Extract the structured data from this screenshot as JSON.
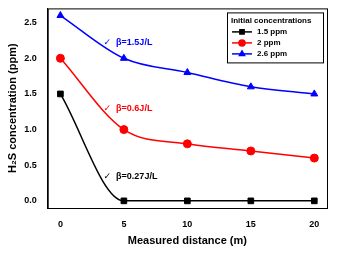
{
  "chart_data": {
    "type": "line",
    "x_label": "Measured distance (m)",
    "y_label": "H₂S concentration (ppm)",
    "x": [
      0,
      5,
      10,
      15,
      20
    ],
    "series": [
      {
        "name": "1.5 ppm",
        "color": "#000000",
        "marker": "square",
        "values": [
          1.5,
          0,
          0,
          0,
          0
        ]
      },
      {
        "name": "2 ppm",
        "color": "#ff0000",
        "marker": "circle",
        "values": [
          2.0,
          1.0,
          0.8,
          0.7,
          0.6
        ]
      },
      {
        "name": "2.6 ppm",
        "color": "#0000ff",
        "marker": "triangle",
        "values": [
          2.6,
          2.0,
          1.8,
          1.6,
          1.5
        ]
      }
    ],
    "legend_title": "Initial concentrations",
    "legend": "upper right",
    "annotations": [
      {
        "text": "✓  β=1.5J/L",
        "color": "#0000ff"
      },
      {
        "text": "✓  β=0.6J/L",
        "color": "#ff0000"
      },
      {
        "text": "✓  β=0.27J/L",
        "color": "#000000"
      }
    ],
    "xlim": [
      -1,
      21
    ],
    "xticks": [
      0,
      5,
      10,
      15,
      20
    ],
    "ylim": [
      -0.1,
      2.7
    ],
    "yticks": [
      {
        "value": 0,
        "label": "0.0"
      },
      0.5,
      {
        "value": 1,
        "label": "1.0"
      },
      1.5,
      {
        "value": 2,
        "label": "2.0"
      },
      2.5
    ],
    "grid": false
  }
}
